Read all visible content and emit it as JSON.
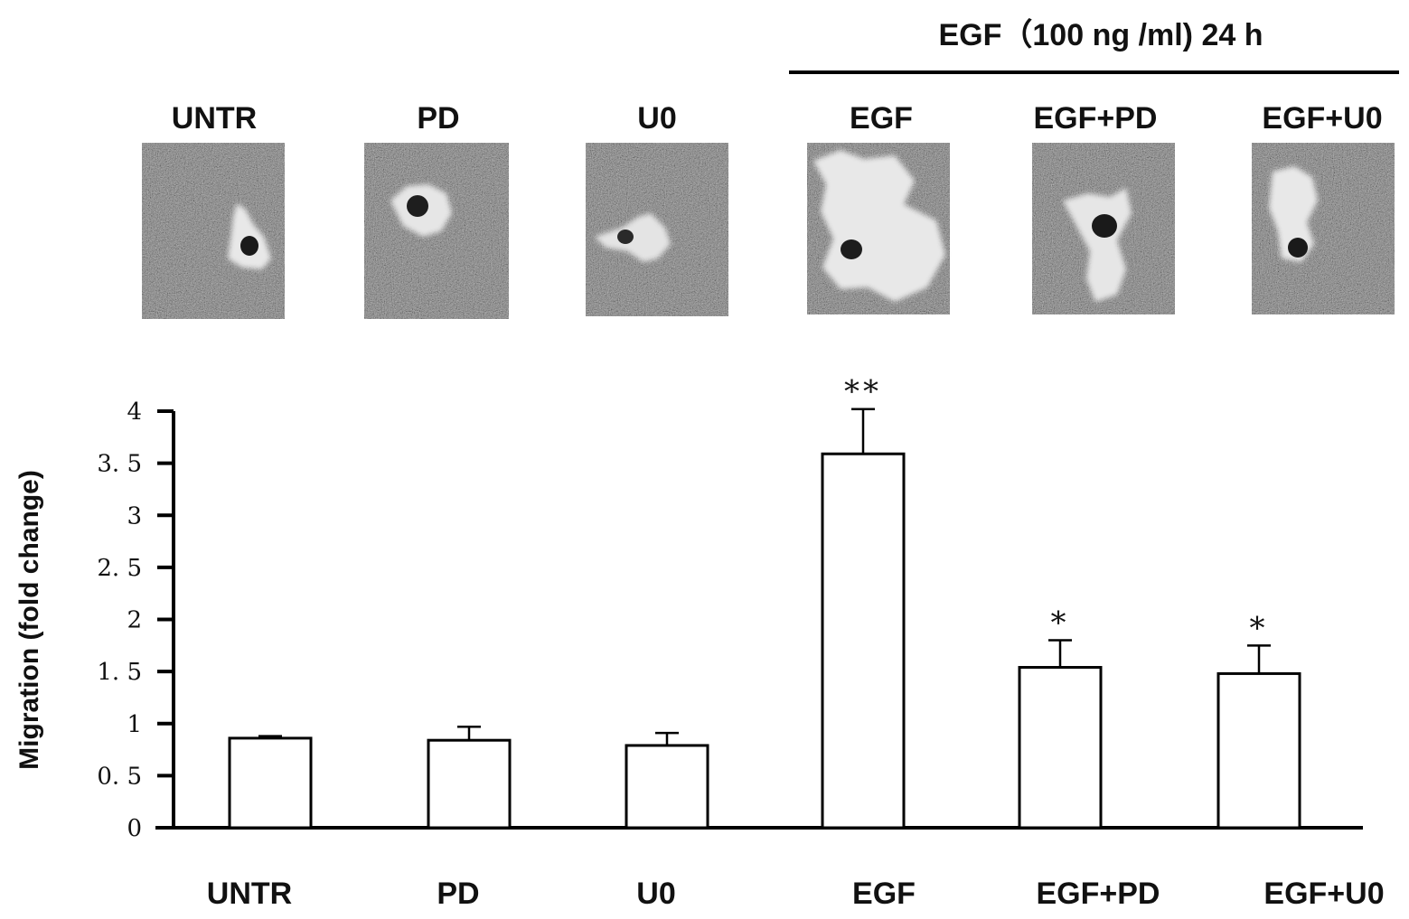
{
  "header": {
    "treatment_label": "EGF（100 ng /ml) 24 h"
  },
  "micrograph_labels": [
    "UNTR",
    "PD",
    "U0",
    "EGF",
    "EGF+PD",
    "EGF+U0"
  ],
  "chart_data": {
    "type": "bar",
    "categories": [
      "UNTR",
      "PD",
      "U0",
      "EGF",
      "EGF+PD",
      "EGF+U0"
    ],
    "values": [
      0.86,
      0.84,
      0.79,
      3.59,
      1.54,
      1.48
    ],
    "errors": [
      0.02,
      0.13,
      0.12,
      0.43,
      0.26,
      0.27
    ],
    "significance": [
      "",
      "",
      "",
      "**",
      "*",
      "*"
    ],
    "ylabel": "Migration (fold change)",
    "xlabel": "",
    "ylim": [
      0,
      4
    ],
    "yticks": [
      0,
      0.5,
      1,
      1.5,
      2,
      2.5,
      3,
      3.5,
      4
    ],
    "ytick_labels": [
      "0",
      "0. 5",
      "1",
      "1. 5",
      "2",
      "2. 5",
      "3",
      "3. 5",
      "4"
    ],
    "grid": false,
    "bar_fill": "#ffffff",
    "bar_stroke": "#000000"
  }
}
